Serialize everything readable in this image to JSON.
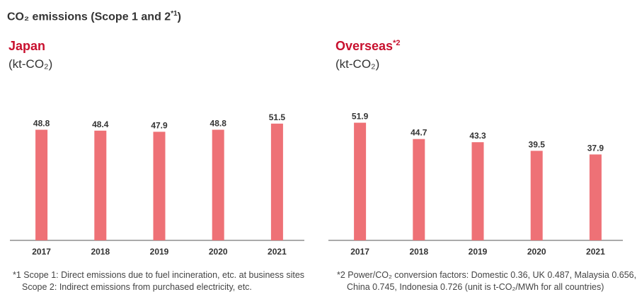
{
  "header": {
    "title": "CO₂ emissions (Scope 1 and 2",
    "title_sup": "*1",
    "title_end": ")"
  },
  "colors": {
    "bar": "#ee7176",
    "accent": "#c8102e",
    "axis": "#555555"
  },
  "chart_data": [
    {
      "type": "bar",
      "title": "Japan",
      "title_sup": "",
      "unit": "(kt-CO₂)",
      "categories": [
        "2017",
        "2018",
        "2019",
        "2020",
        "2021"
      ],
      "values": [
        48.8,
        48.4,
        47.9,
        48.8,
        51.5
      ],
      "labels": [
        "48.8",
        "48.4",
        "47.9",
        "48.8",
        "51.5"
      ],
      "ylim": [
        0,
        60
      ]
    },
    {
      "type": "bar",
      "title": "Overseas",
      "title_sup": "*2",
      "unit": "(kt-CO₂)",
      "categories": [
        "2017",
        "2018",
        "2019",
        "2020",
        "2021"
      ],
      "values": [
        51.9,
        44.7,
        43.3,
        39.5,
        37.9
      ],
      "labels": [
        "51.9",
        "44.7",
        "43.3",
        "39.5",
        "37.9"
      ],
      "ylim": [
        0,
        60
      ]
    }
  ],
  "footnotes": {
    "left": [
      "*1 Scope 1: Direct emissions due to fuel incineration, etc. at business sites",
      "Scope 2: Indirect emissions from purchased electricity, etc."
    ],
    "right": [
      "*2 Power/CO₂ conversion factors: Domestic 0.36, UK 0.487, Malaysia 0.656,",
      "China 0.745, Indonesia 0.726 (unit is t-CO₂/MWh for all countries)"
    ]
  }
}
